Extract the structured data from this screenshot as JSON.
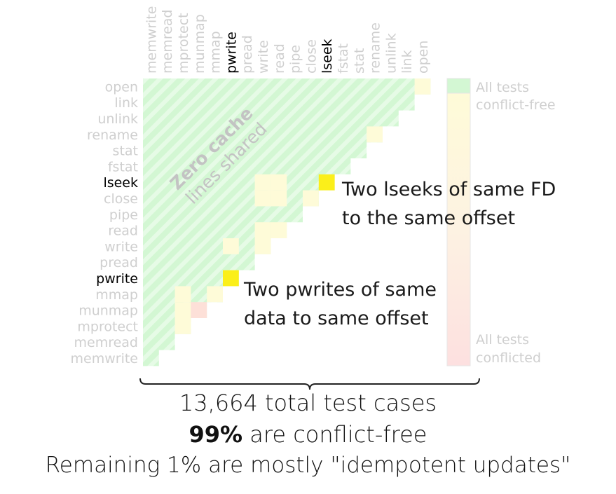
{
  "chart_data": {
    "type": "heatmap",
    "calls": [
      "memwrite",
      "memread",
      "mprotect",
      "munmap",
      "mmap",
      "pwrite",
      "pread",
      "write",
      "read",
      "pipe",
      "close",
      "lseek",
      "fstat",
      "stat",
      "rename",
      "unlink",
      "link",
      "open"
    ],
    "row_order": [
      "open",
      "link",
      "unlink",
      "rename",
      "stat",
      "fstat",
      "lseek",
      "close",
      "pipe",
      "read",
      "write",
      "pread",
      "pwrite",
      "mmap",
      "munmap",
      "mprotect",
      "memread",
      "memwrite"
    ],
    "highlight_labels": [
      "lseek",
      "pwrite"
    ],
    "conflict_cells": [
      {
        "row": "open",
        "col": "open",
        "fraction": 0.05
      },
      {
        "row": "rename",
        "col": "rename",
        "fraction": 0.05
      },
      {
        "row": "lseek",
        "col": "write",
        "fraction": 0.07
      },
      {
        "row": "lseek",
        "col": "read",
        "fraction": 0.07
      },
      {
        "row": "lseek",
        "col": "lseek",
        "fraction": 0.55
      },
      {
        "row": "close",
        "col": "write",
        "fraction": 0.07
      },
      {
        "row": "close",
        "col": "read",
        "fraction": 0.07
      },
      {
        "row": "close",
        "col": "close",
        "fraction": 0.05
      },
      {
        "row": "read",
        "col": "write",
        "fraction": 0.05
      },
      {
        "row": "read",
        "col": "read",
        "fraction": 0.05
      },
      {
        "row": "write",
        "col": "pwrite",
        "fraction": 0.05
      },
      {
        "row": "write",
        "col": "write",
        "fraction": 0.05
      },
      {
        "row": "pwrite",
        "col": "pwrite",
        "fraction": 0.55
      },
      {
        "row": "mmap",
        "col": "mprotect",
        "fraction": 0.05
      },
      {
        "row": "mmap",
        "col": "mmap",
        "fraction": 0.05
      },
      {
        "row": "munmap",
        "col": "mprotect",
        "fraction": 0.05
      },
      {
        "row": "munmap",
        "col": "munmap",
        "fraction": 0.15
      },
      {
        "row": "mprotect",
        "col": "mprotect",
        "fraction": 0.05
      }
    ],
    "colors": {
      "conflict_free": "#d3f7d3",
      "stripe": "#e6fbe6",
      "low": "#fefbd8",
      "high": "#fbef1a",
      "munmap": "#fde0d8",
      "label_dim": "#cfcfcf",
      "label_highlight": "#000000"
    },
    "colorbar": {
      "top_label_lines": [
        "All tests",
        "conflict-free"
      ],
      "bottom_label_lines": [
        "All tests",
        "conflicted"
      ]
    },
    "watermark_lines": [
      "Zero cache",
      "lines shared"
    ],
    "annotations": [
      {
        "lines": [
          "Two lseeks of same FD",
          "to the same offset"
        ]
      },
      {
        "lines": [
          "Two pwrites of same",
          "data to same offset"
        ]
      }
    ]
  },
  "summary": {
    "line1": "13,664 total test cases",
    "line2_bold": "99%",
    "line2_rest": " are conflict-free",
    "line3": "Remaining 1% are mostly \"idempotent updates\""
  }
}
